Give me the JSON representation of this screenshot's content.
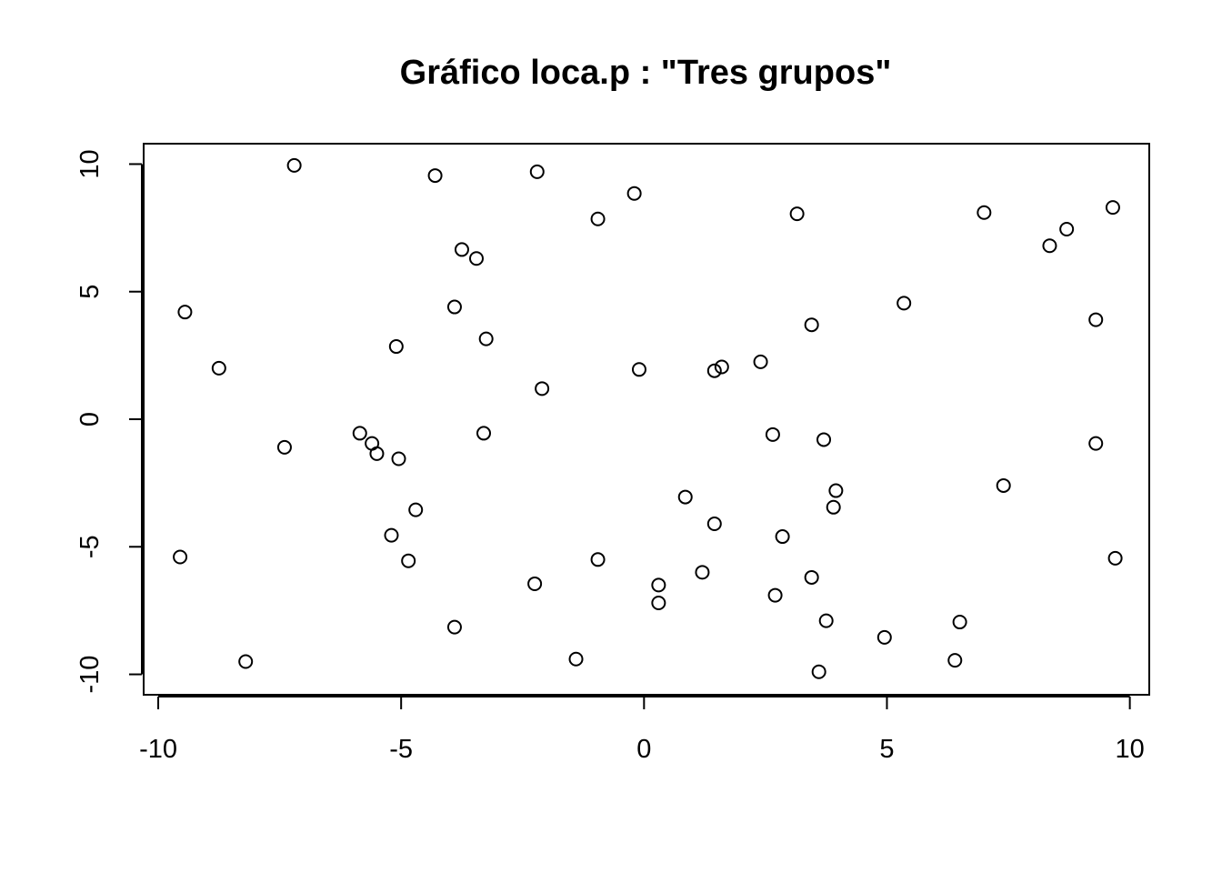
{
  "chart_data": {
    "type": "scatter",
    "title": "Gráfico loca.p : \"Tres grupos\"",
    "xlabel": "",
    "ylabel": "",
    "xlim": [
      -10.3,
      10.4
    ],
    "ylim": [
      -10.8,
      10.8
    ],
    "x_ticks": [
      -10,
      -5,
      0,
      5,
      10
    ],
    "x_tick_labels": [
      "-10",
      "-5",
      "0",
      "5",
      "10"
    ],
    "y_ticks": [
      -10,
      -5,
      0,
      5,
      10
    ],
    "y_tick_labels": [
      "-10",
      "-5",
      "0",
      "5",
      "10"
    ],
    "grid": false,
    "legend": false,
    "point_style": "open-circle",
    "point_color": "#000000",
    "series": [
      {
        "x": [
          -7.2,
          -4.3,
          -2.2,
          -0.2,
          -0.95,
          3.15,
          7.0,
          9.65,
          8.7,
          8.35,
          -3.75,
          -3.45,
          -9.45,
          -3.9,
          5.35,
          3.45,
          9.3,
          -5.1,
          -3.25,
          -8.75,
          -0.1,
          1.45,
          1.6,
          2.4,
          -2.1,
          -7.4,
          -5.85,
          -5.6,
          -5.5,
          -5.05,
          -3.3,
          2.65,
          3.7,
          9.3,
          3.95,
          7.4,
          -4.7,
          0.85,
          1.45,
          3.9,
          -5.2,
          -9.55,
          -4.85,
          -0.95,
          2.85,
          9.7,
          1.2,
          0.3,
          3.45,
          -2.25,
          0.3,
          2.7,
          -3.9,
          3.75,
          6.5,
          4.95,
          -8.2,
          -1.4,
          6.4,
          3.6
        ],
        "y": [
          9.95,
          9.55,
          9.7,
          8.85,
          7.85,
          8.05,
          8.1,
          8.3,
          7.45,
          6.8,
          6.65,
          6.3,
          4.2,
          4.4,
          4.55,
          3.7,
          3.9,
          2.85,
          3.15,
          2.0,
          1.95,
          1.9,
          2.05,
          2.25,
          1.2,
          -1.1,
          -0.55,
          -0.95,
          -1.35,
          -1.55,
          -0.55,
          -0.6,
          -0.8,
          -0.95,
          -2.8,
          -2.6,
          -3.55,
          -3.05,
          -4.1,
          -3.45,
          -4.55,
          -5.4,
          -5.55,
          -5.5,
          -4.6,
          -5.45,
          -6.0,
          -6.5,
          -6.2,
          -6.45,
          -7.2,
          -6.9,
          -8.15,
          -7.9,
          -7.95,
          -8.55,
          -9.5,
          -9.4,
          -9.45,
          -9.9
        ]
      }
    ]
  }
}
